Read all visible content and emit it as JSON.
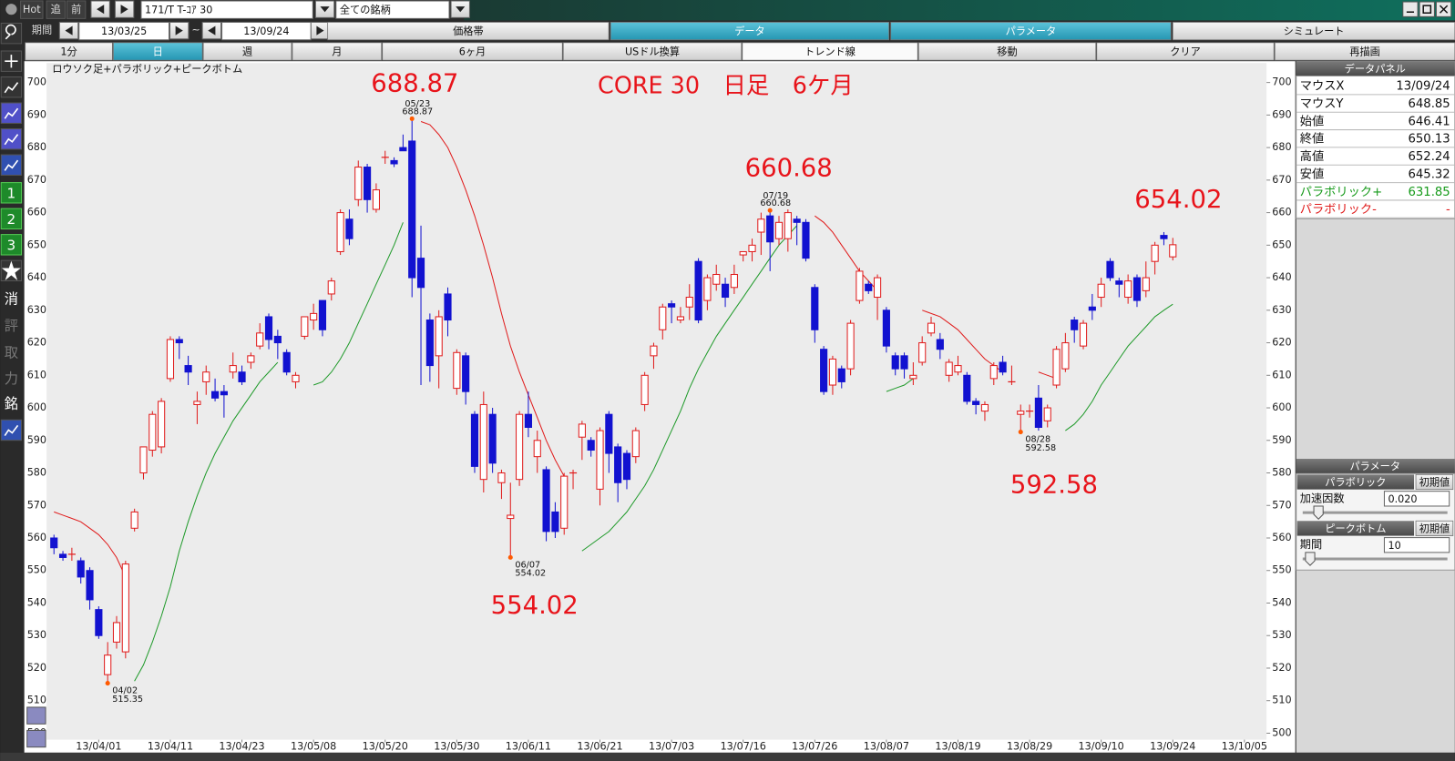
{
  "toolbar": {
    "hot": "Hot",
    "follow": "追",
    "prev": "前",
    "symbol": "171/T T-ｺｱ 30",
    "universe": "全ての銘柄"
  },
  "period_bar": {
    "label": "期間",
    "from": "13/03/25",
    "tilde": "~",
    "to": "13/09/24",
    "tabs": [
      "価格帯",
      "データ",
      "パラメータ",
      "シミュレート"
    ]
  },
  "buttons": [
    "1分",
    "日",
    "週",
    "月",
    "6ヶ月",
    "USドル換算",
    "トレンド線",
    "移動",
    "クリア",
    "再描画"
  ],
  "side_tools": [
    "1",
    "2",
    "3",
    "消",
    "評",
    "取",
    "力",
    "銘"
  ],
  "chart_data": {
    "type": "candlestick",
    "title": "CORE 30　日足　6ケ月",
    "subtitle": "ロウソク足+パラボリック+ピークボトム",
    "categories": [
      null,
      null,
      null,
      null,
      null,
      "13/04/01",
      null,
      null,
      null,
      null,
      null,
      null,
      null,
      "13/04/11",
      null,
      null,
      null,
      null,
      null,
      null,
      null,
      "13/04/23",
      null,
      null,
      null,
      null,
      null,
      null,
      null,
      "13/05/08",
      null,
      null,
      null,
      null,
      null,
      null,
      null,
      "13/05/20",
      null,
      null,
      null,
      null,
      null,
      null,
      null,
      "13/05/30",
      null,
      null,
      null,
      null,
      null,
      null,
      null,
      "13/06/11",
      null,
      null,
      null,
      null,
      null,
      null,
      null,
      "13/06/21",
      null,
      null,
      null,
      null,
      null,
      null,
      null,
      "13/07/03",
      null,
      null,
      null,
      null,
      null,
      null,
      null,
      "13/07/16",
      null,
      null,
      null,
      null,
      null,
      null,
      null,
      "13/07/26",
      null,
      null,
      null,
      null,
      null,
      null,
      null,
      "13/08/07",
      null,
      null,
      null,
      null,
      null,
      null,
      null,
      "13/08/19",
      null,
      null,
      null,
      null,
      null,
      null,
      null,
      "13/08/29",
      null,
      null,
      null,
      null,
      null,
      null,
      null,
      "13/09/10",
      null,
      null,
      null,
      null,
      null,
      null,
      null,
      "13/09/24",
      null,
      null,
      null,
      null,
      null,
      null,
      null,
      "13/10/05"
    ],
    "candles": [
      [
        560,
        557,
        561,
        555
      ],
      [
        555,
        554,
        556,
        553
      ],
      [
        555,
        555,
        557,
        553
      ],
      [
        553,
        548,
        554,
        546
      ],
      [
        550,
        541,
        551,
        538
      ],
      [
        538,
        530,
        539,
        529
      ],
      [
        518,
        524,
        528,
        515.35
      ],
      [
        528,
        534,
        536,
        526
      ],
      [
        525,
        552,
        553,
        523
      ],
      [
        563,
        568,
        569,
        562
      ],
      [
        580,
        588,
        588,
        578
      ],
      [
        587,
        598,
        599,
        585
      ],
      [
        588,
        602,
        603,
        586
      ],
      [
        609,
        621,
        622,
        608
      ],
      [
        621,
        620,
        622,
        615
      ],
      [
        613,
        611,
        616,
        607
      ],
      [
        601,
        602,
        605,
        595
      ],
      [
        608,
        611,
        613,
        604
      ],
      [
        605,
        603,
        609,
        602
      ],
      [
        605,
        604,
        607,
        597
      ],
      [
        611,
        613,
        617,
        609
      ],
      [
        611,
        608,
        613,
        607
      ],
      [
        614,
        616,
        617,
        612
      ],
      [
        619,
        623,
        626,
        618
      ],
      [
        628,
        621,
        629,
        618
      ],
      [
        622,
        620,
        624,
        615
      ],
      [
        617,
        611,
        618,
        610
      ],
      [
        608,
        610,
        611,
        606
      ],
      [
        622,
        628,
        628,
        621
      ],
      [
        627,
        629,
        632,
        624
      ],
      [
        633,
        624,
        633,
        622
      ],
      [
        635,
        639,
        640,
        633
      ],
      [
        648,
        660,
        661,
        647
      ],
      [
        658,
        652,
        661,
        650
      ],
      [
        664,
        674,
        676,
        662
      ],
      [
        674,
        664,
        675,
        660
      ],
      [
        661,
        667,
        669,
        660
      ],
      [
        677,
        677,
        679,
        675
      ],
      [
        676,
        675,
        677,
        674
      ],
      [
        680,
        679,
        684,
        679
      ],
      [
        682,
        640,
        688.87,
        634
      ],
      [
        646,
        637,
        656,
        607
      ],
      [
        627,
        613,
        629,
        608
      ],
      [
        616,
        628,
        630,
        606
      ],
      [
        635,
        627,
        637,
        622
      ],
      [
        606,
        617,
        618,
        604
      ],
      [
        616,
        605,
        617,
        601
      ],
      [
        598,
        582,
        599,
        580
      ],
      [
        578,
        601,
        605,
        574
      ],
      [
        598,
        583,
        600,
        580
      ],
      [
        577,
        580,
        581,
        572
      ],
      [
        566,
        567,
        577,
        554.02
      ],
      [
        578,
        598,
        599,
        576
      ],
      [
        598,
        594,
        605,
        591
      ],
      [
        585,
        590,
        593,
        580
      ],
      [
        581,
        562,
        582,
        559
      ],
      [
        568,
        562,
        571,
        560
      ],
      [
        563,
        579,
        580,
        561
      ],
      [
        580,
        580,
        581,
        575
      ],
      [
        591,
        595,
        596,
        584
      ],
      [
        590,
        587,
        591,
        585
      ],
      [
        575,
        593,
        594,
        570
      ],
      [
        598,
        586,
        599,
        580
      ],
      [
        588,
        577,
        589,
        571
      ],
      [
        586,
        578,
        587,
        575
      ],
      [
        585,
        593,
        594,
        583
      ],
      [
        601,
        610,
        611,
        599
      ],
      [
        616,
        619,
        620,
        612
      ],
      [
        624,
        631,
        632,
        621
      ],
      [
        632,
        631,
        633,
        626
      ],
      [
        627,
        628,
        631,
        626
      ],
      [
        631,
        634,
        638,
        627
      ],
      [
        645,
        627,
        646,
        626
      ],
      [
        633,
        640,
        641,
        630
      ],
      [
        638,
        641,
        644,
        636
      ],
      [
        638,
        634,
        640,
        631
      ],
      [
        637,
        641,
        644,
        635
      ],
      [
        647,
        648,
        648,
        645
      ],
      [
        648,
        650,
        652,
        645
      ],
      [
        654,
        658,
        660,
        647
      ],
      [
        659,
        651,
        660.68,
        642
      ],
      [
        652,
        657,
        659,
        650
      ],
      [
        652,
        660,
        661,
        648
      ],
      [
        658,
        657,
        659,
        650
      ],
      [
        657,
        646,
        658,
        645
      ],
      [
        637,
        624,
        638,
        620
      ],
      [
        618,
        605,
        619,
        604
      ],
      [
        607,
        615,
        616,
        604
      ],
      [
        612,
        608,
        613,
        606
      ],
      [
        612,
        626,
        627,
        610
      ],
      [
        633,
        642,
        643,
        632
      ],
      [
        638,
        636,
        639,
        635
      ],
      [
        634,
        640,
        641,
        627
      ],
      [
        630,
        619,
        631,
        617
      ],
      [
        616,
        612,
        617,
        610
      ],
      [
        616,
        612,
        617,
        609
      ],
      [
        609,
        610,
        614,
        607
      ],
      [
        614,
        620,
        622,
        613
      ],
      [
        623,
        626,
        628,
        622
      ],
      [
        621,
        618,
        623,
        615
      ],
      [
        610,
        614,
        615,
        608
      ],
      [
        611,
        613,
        616,
        610
      ],
      [
        610,
        602,
        611,
        601
      ],
      [
        602,
        601,
        603,
        598
      ],
      [
        599,
        601,
        602,
        596
      ],
      [
        609,
        613,
        614,
        607
      ],
      [
        614,
        611,
        616,
        610
      ],
      [
        608,
        608,
        613,
        607
      ],
      [
        598,
        599,
        601,
        592.58
      ],
      [
        599,
        599,
        601,
        597
      ],
      [
        603,
        594,
        607,
        593
      ],
      [
        596,
        600,
        601,
        594
      ],
      [
        607,
        618,
        619,
        606
      ],
      [
        612,
        620,
        623,
        611
      ],
      [
        627,
        624,
        628,
        620
      ],
      [
        619,
        626,
        627,
        618
      ],
      [
        631,
        630,
        635,
        627
      ],
      [
        634,
        638,
        640,
        631
      ],
      [
        645,
        640,
        646,
        639
      ],
      [
        639,
        638,
        640,
        634
      ],
      [
        634,
        639,
        641,
        632
      ],
      [
        640,
        633,
        641,
        631
      ],
      [
        636,
        640,
        645,
        634
      ],
      [
        645,
        650,
        651,
        641
      ],
      [
        653,
        652,
        654.02,
        650
      ],
      [
        646.41,
        650.13,
        652.24,
        645.32
      ],
      null,
      null,
      null,
      null,
      null,
      null,
      null,
      null
    ],
    "up_color": "#e01b1b",
    "down_color": "#1212d0",
    "series": [
      {
        "color": "#1f9a2a",
        "values": [
          null,
          null,
          null,
          null,
          null,
          null,
          null,
          null,
          null,
          516,
          521,
          528,
          536,
          545,
          556,
          565,
          573,
          580,
          586,
          591,
          596,
          600,
          604,
          608,
          611,
          614,
          null,
          null,
          null,
          607,
          608,
          611,
          615,
          620,
          626,
          632,
          638,
          644,
          650,
          657,
          null,
          null,
          null,
          null,
          null,
          null,
          null,
          null,
          null,
          null,
          null,
          null,
          null,
          null,
          null,
          null,
          null,
          null,
          null,
          556,
          558,
          560,
          562,
          565,
          568,
          572,
          576,
          581,
          587,
          593,
          599,
          606,
          612,
          617,
          622,
          626,
          630,
          634,
          638,
          642,
          646,
          650,
          653,
          656,
          null,
          null,
          null,
          null,
          null,
          null,
          null,
          null,
          null,
          605,
          606,
          607,
          609,
          null,
          null,
          null,
          null,
          null,
          null,
          null,
          null,
          null,
          null,
          null,
          null,
          null,
          null,
          null,
          null,
          593,
          595,
          598,
          602,
          607,
          611,
          615,
          619,
          622,
          625,
          628,
          630,
          631.85,
          null,
          null,
          null,
          null,
          null,
          null,
          null,
          null
        ]
      },
      {
        "color": "#e01b1b",
        "values": [
          568,
          567,
          566,
          565,
          563,
          561,
          558,
          554,
          548,
          null,
          null,
          null,
          null,
          null,
          null,
          null,
          null,
          null,
          null,
          null,
          null,
          null,
          null,
          null,
          null,
          null,
          null,
          null,
          null,
          null,
          null,
          null,
          null,
          null,
          null,
          null,
          null,
          null,
          null,
          null,
          null,
          688,
          687,
          684,
          680,
          674,
          667,
          659,
          650,
          640,
          629,
          619,
          611,
          604,
          597,
          590,
          584,
          579,
          null,
          null,
          null,
          null,
          null,
          null,
          null,
          null,
          null,
          null,
          null,
          null,
          null,
          null,
          null,
          null,
          null,
          null,
          null,
          null,
          null,
          null,
          null,
          null,
          null,
          null,
          null,
          659,
          657,
          654,
          650,
          646,
          642,
          639,
          636,
          null,
          null,
          null,
          null,
          630,
          629,
          628,
          626,
          624,
          621,
          618,
          615,
          613,
          611,
          null,
          null,
          null,
          611,
          610,
          609,
          null,
          null,
          null,
          null,
          null,
          null,
          null,
          null,
          null,
          null,
          null,
          null,
          null,
          null,
          null,
          null,
          null,
          null,
          null,
          null,
          null
        ]
      }
    ],
    "peak_dates": [
      null,
      null,
      null,
      null,
      null,
      null,
      null,
      null,
      null,
      null,
      null,
      null,
      null,
      null,
      null,
      null,
      null,
      null,
      null,
      null,
      null,
      null,
      null,
      null,
      null,
      null,
      null,
      null,
      null,
      null,
      null,
      null,
      null,
      null,
      null,
      null,
      null,
      null,
      null,
      null,
      "05/23",
      null,
      null,
      null,
      null,
      null,
      null,
      null,
      null,
      null,
      null,
      null,
      null,
      null,
      null,
      null,
      null,
      null,
      null,
      null,
      null,
      null,
      null,
      null,
      null,
      null,
      null,
      null,
      null,
      null,
      null,
      null,
      null,
      null,
      null,
      null,
      null,
      null,
      null,
      null,
      "07/19",
      null,
      null,
      null,
      null,
      null,
      null,
      null,
      null,
      null,
      null,
      null,
      null,
      null,
      null,
      null,
      null,
      null,
      null,
      null,
      null,
      null,
      null,
      null,
      null,
      null,
      null,
      null,
      null,
      null,
      null,
      null,
      null,
      null,
      null,
      null,
      null,
      null,
      null,
      null,
      null,
      null,
      null,
      null,
      null,
      null,
      null,
      null,
      null,
      null,
      null,
      null,
      null,
      null
    ],
    "bottom_dates": [
      null,
      null,
      null,
      null,
      null,
      null,
      "04/02",
      null,
      null,
      null,
      null,
      null,
      null,
      null,
      null,
      null,
      null,
      null,
      null,
      null,
      null,
      null,
      null,
      null,
      null,
      null,
      null,
      null,
      null,
      null,
      null,
      null,
      null,
      null,
      null,
      null,
      null,
      null,
      null,
      null,
      null,
      null,
      null,
      null,
      null,
      null,
      null,
      null,
      null,
      null,
      null,
      "06/07",
      null,
      null,
      null,
      null,
      null,
      null,
      null,
      null,
      null,
      null,
      null,
      null,
      null,
      null,
      null,
      null,
      null,
      null,
      null,
      null,
      null,
      null,
      null,
      null,
      null,
      null,
      null,
      null,
      null,
      null,
      null,
      null,
      null,
      null,
      null,
      null,
      null,
      null,
      null,
      null,
      null,
      null,
      null,
      null,
      null,
      null,
      null,
      null,
      null,
      null,
      null,
      null,
      null,
      null,
      null,
      null,
      "08/28",
      null,
      null,
      null,
      null,
      null,
      null,
      null,
      null,
      null,
      null,
      null,
      null,
      null,
      null,
      null,
      null,
      null,
      null,
      null,
      null,
      null,
      null,
      null,
      null
    ],
    "marker_color": "#ff5a00",
    "callout_color": "#e8141b",
    "ylim": [
      500,
      700
    ],
    "yticks": [
      500,
      510,
      520,
      530,
      540,
      550,
      560,
      570,
      580,
      590,
      600,
      610,
      620,
      630,
      640,
      650,
      660,
      670,
      680,
      690,
      700
    ],
    "grid": false
  },
  "data_panel": {
    "title": "データパネル",
    "rows": [
      [
        "マウスX",
        "13/09/24"
      ],
      [
        "マウスY",
        "648.85"
      ],
      [
        "始値",
        "646.41"
      ],
      [
        "終値",
        "650.13"
      ],
      [
        "高値",
        "652.24"
      ],
      [
        "安値",
        "645.32"
      ],
      [
        "パラボリック+",
        "631.85"
      ],
      [
        "パラボリック-",
        "-"
      ]
    ]
  },
  "parameters": {
    "title": "パラメータ",
    "parabolic": {
      "title": "パラボリック",
      "reset": "初期値",
      "label": "加速因数",
      "value": "0.020"
    },
    "peak_bottom": {
      "title": "ピークボトム",
      "reset": "初期値",
      "label": "期間",
      "value": "10"
    }
  }
}
